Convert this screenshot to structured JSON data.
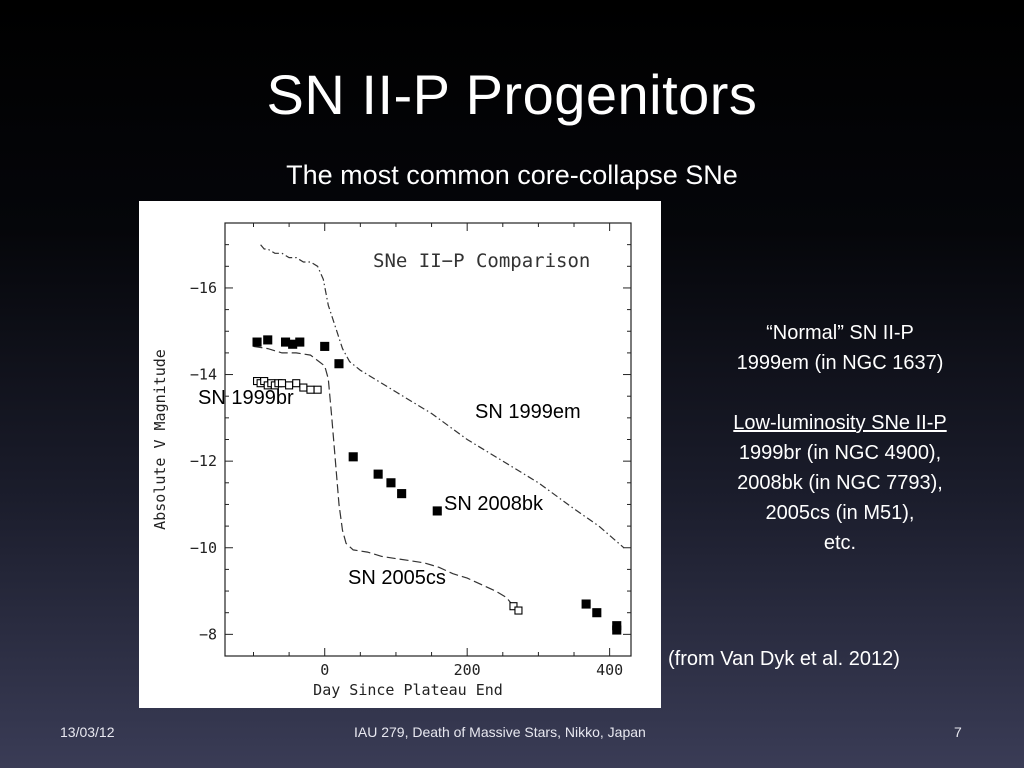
{
  "slide": {
    "title": "SN II-P Progenitors",
    "subtitle": "The most common core-collapse SNe",
    "notes": {
      "normal_heading": "“Normal” SN II-P",
      "normal_object": "1999em (in NGC 1637)",
      "lowlum_heading": "Low-luminosity SNe II-P",
      "lowlum_lines": [
        "1999br (in NGC 4900),",
        "2008bk (in NGC 7793),",
        "2005cs (in M51),",
        "etc."
      ]
    },
    "source": "(from Van Dyk et al. 2012)",
    "footer": {
      "date": "13/03/12",
      "center": "IAU 279, Death of Massive Stars, Nikko, Japan",
      "page": "7"
    }
  },
  "chart_data": {
    "type": "line",
    "title": "SNe II−P Comparison",
    "xlabel": "Day Since Plateau End",
    "ylabel": "Absolute V Magnitude",
    "xlim": [
      -140,
      430
    ],
    "ylim": [
      -7.5,
      -17.5
    ],
    "y_inverted": true,
    "xticks": [
      0,
      200,
      400
    ],
    "yticks": [
      -16,
      -14,
      -12,
      -10,
      -8
    ],
    "ytick_labels": [
      "−16",
      "−14",
      "−12",
      "−10",
      "−8"
    ],
    "annotations": [
      "SN 1999br",
      "SN 1999em",
      "SN 2008bk",
      "SN 2005cs"
    ],
    "series": [
      {
        "name": "SN 1999em",
        "style": "dash-dot",
        "color": "#333333",
        "x": [
          -90,
          -85,
          -80,
          -70,
          -60,
          -50,
          -40,
          -30,
          -20,
          -10,
          -2,
          5,
          15,
          25,
          35,
          50,
          100,
          150,
          200,
          250,
          300,
          350,
          385,
          420
        ],
        "y": [
          -17.0,
          -16.9,
          -16.9,
          -16.8,
          -16.8,
          -16.7,
          -16.7,
          -16.6,
          -16.6,
          -16.5,
          -16.2,
          -15.6,
          -15.1,
          -14.6,
          -14.3,
          -14.1,
          -13.6,
          -13.1,
          -12.5,
          -12.0,
          -11.5,
          -10.9,
          -10.5,
          -10.0
        ]
      },
      {
        "name": "SN 2005cs",
        "style": "dashed",
        "color": "#333333",
        "x": [
          -100,
          -80,
          -60,
          -40,
          -20,
          0,
          5,
          10,
          15,
          20,
          25,
          30,
          40,
          60,
          80,
          100,
          120,
          140,
          160,
          180,
          200,
          220,
          240,
          255,
          265
        ],
        "y": [
          -14.65,
          -14.6,
          -14.5,
          -14.5,
          -14.45,
          -14.2,
          -13.9,
          -13.0,
          -12.0,
          -11.0,
          -10.4,
          -10.1,
          -9.95,
          -9.9,
          -9.8,
          -9.75,
          -9.7,
          -9.65,
          -9.55,
          -9.4,
          -9.3,
          -9.15,
          -9.0,
          -8.85,
          -8.65
        ]
      },
      {
        "name": "SN 2008bk",
        "style": "filled-square",
        "color": "#000000",
        "x": [
          -95,
          -80,
          -55,
          -45,
          -35,
          0,
          20,
          40,
          75,
          93,
          108,
          158,
          367,
          382,
          410,
          410
        ],
        "y": [
          -14.75,
          -14.8,
          -14.75,
          -14.7,
          -14.75,
          -14.65,
          -14.25,
          -12.1,
          -11.7,
          -11.5,
          -11.25,
          -10.85,
          -8.7,
          -8.5,
          -8.2,
          -8.1
        ]
      },
      {
        "name": "SN 1999br",
        "style": "open-square",
        "color": "#000000",
        "x": [
          -95,
          -90,
          -85,
          -80,
          -75,
          -70,
          -65,
          -60,
          -50,
          -40,
          -30,
          -20,
          -10,
          265,
          272
        ],
        "y": [
          -13.85,
          -13.8,
          -13.85,
          -13.75,
          -13.8,
          -13.75,
          -13.8,
          -13.8,
          -13.75,
          -13.8,
          -13.7,
          -13.65,
          -13.65,
          -8.65,
          -8.55
        ]
      }
    ]
  }
}
